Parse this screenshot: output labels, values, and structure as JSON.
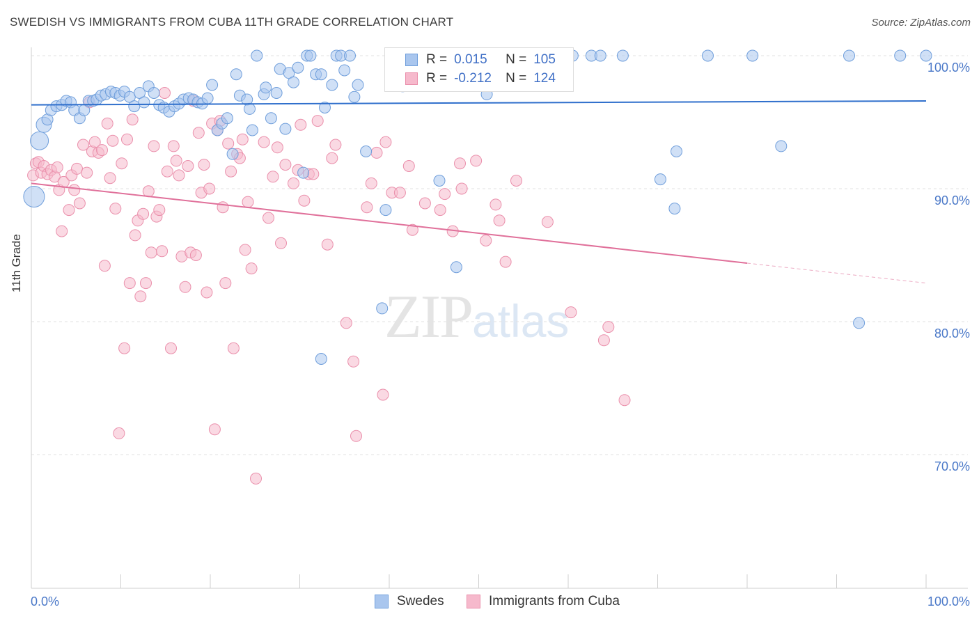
{
  "header": {
    "title": "SWEDISH VS IMMIGRANTS FROM CUBA 11TH GRADE CORRELATION CHART",
    "source": "Source: ZipAtlas.com"
  },
  "watermark": {
    "zip": "ZIP",
    "atlas": "atlas"
  },
  "legend_top": {
    "rows": [
      {
        "r_label": "R =",
        "r_value": "0.015",
        "n_label": "N =",
        "n_value": "105"
      },
      {
        "r_label": "R =",
        "r_value": "-0.212",
        "n_label": "N =",
        "n_value": "124"
      }
    ]
  },
  "legend_bottom": {
    "items": [
      "Swedes",
      "Immigrants from Cuba"
    ]
  },
  "colors": {
    "swedes_fill": "#a9c6ee",
    "swedes_stroke": "#6f9edb",
    "swedes_line": "#2f6fcc",
    "cuba_fill": "#f6b9cc",
    "cuba_stroke": "#ea8fab",
    "cuba_line": "#e0709a",
    "grid": "#e2e2e2",
    "axis_text": "#4a78c8"
  },
  "chart_data": {
    "type": "scatter",
    "title": "SWEDISH VS IMMIGRANTS FROM CUBA 11TH GRADE CORRELATION CHART",
    "xlabel": "",
    "ylabel": "11th Grade",
    "xlim": [
      0,
      100
    ],
    "ylim": [
      60.4,
      101.5
    ],
    "x_tick_labels": [
      {
        "value": 0,
        "label": "0.0%"
      },
      {
        "value": 100,
        "label": "100.0%"
      }
    ],
    "y_tick_labels": [
      {
        "value": 100,
        "label": "100.0%"
      },
      {
        "value": 90,
        "label": "90.0%"
      },
      {
        "value": 80,
        "label": "80.0%"
      },
      {
        "value": 70,
        "label": "70.0%"
      }
    ],
    "grid": true,
    "legend_position": "top-center",
    "series": [
      {
        "name": "Swedes",
        "r": 0.015,
        "n": 105,
        "trend": {
          "x": [
            0,
            100
          ],
          "y": [
            96.3,
            96.6
          ],
          "dashed_from_x": null
        },
        "points": [
          [
            0.3,
            89.4
          ],
          [
            0.9,
            93.6
          ],
          [
            1.4,
            94.8
          ],
          [
            1.8,
            95.2
          ],
          [
            2.2,
            95.9
          ],
          [
            2.8,
            96.2
          ],
          [
            3.4,
            96.3
          ],
          [
            3.9,
            96.6
          ],
          [
            4.4,
            96.5
          ],
          [
            4.8,
            95.9
          ],
          [
            5.4,
            95.3
          ],
          [
            5.9,
            95.9
          ],
          [
            6.4,
            96.6
          ],
          [
            6.9,
            96.6
          ],
          [
            7.3,
            96.7
          ],
          [
            7.8,
            97.0
          ],
          [
            8.3,
            97.1
          ],
          [
            8.9,
            97.3
          ],
          [
            9.4,
            97.2
          ],
          [
            9.9,
            97.0
          ],
          [
            10.4,
            97.3
          ],
          [
            11.0,
            96.9
          ],
          [
            11.5,
            96.2
          ],
          [
            12.1,
            97.2
          ],
          [
            12.6,
            96.5
          ],
          [
            13.1,
            97.7
          ],
          [
            13.7,
            97.2
          ],
          [
            14.3,
            96.3
          ],
          [
            14.8,
            96.1
          ],
          [
            15.4,
            95.8
          ],
          [
            16.0,
            96.2
          ],
          [
            16.5,
            96.4
          ],
          [
            17.0,
            96.7
          ],
          [
            17.6,
            96.8
          ],
          [
            18.1,
            96.7
          ],
          [
            18.6,
            96.5
          ],
          [
            19.1,
            96.4
          ],
          [
            19.7,
            96.8
          ],
          [
            20.2,
            97.8
          ],
          [
            20.8,
            94.4
          ],
          [
            21.3,
            94.9
          ],
          [
            21.9,
            95.3
          ],
          [
            22.5,
            92.6
          ],
          [
            22.9,
            98.6
          ],
          [
            23.3,
            97.0
          ],
          [
            24.1,
            96.7
          ],
          [
            24.4,
            96.0
          ],
          [
            24.7,
            94.4
          ],
          [
            25.2,
            100.0
          ],
          [
            26.0,
            97.1
          ],
          [
            26.2,
            97.6
          ],
          [
            26.8,
            95.3
          ],
          [
            27.4,
            97.2
          ],
          [
            27.8,
            99.0
          ],
          [
            28.4,
            94.5
          ],
          [
            28.8,
            98.7
          ],
          [
            29.3,
            98.0
          ],
          [
            29.8,
            99.1
          ],
          [
            30.4,
            91.2
          ],
          [
            30.8,
            100.0
          ],
          [
            31.2,
            100.0
          ],
          [
            31.8,
            98.6
          ],
          [
            32.4,
            98.6
          ],
          [
            32.8,
            96.1
          ],
          [
            33.6,
            97.8
          ],
          [
            34.1,
            100.0
          ],
          [
            34.6,
            100.0
          ],
          [
            35.0,
            98.9
          ],
          [
            35.6,
            100.0
          ],
          [
            36.1,
            96.9
          ],
          [
            36.5,
            97.8
          ],
          [
            37.4,
            92.8
          ],
          [
            39.2,
            81.0
          ],
          [
            39.6,
            88.4
          ],
          [
            40.6,
            98.4
          ],
          [
            40.9,
            100.0
          ],
          [
            41.5,
            97.7
          ],
          [
            43.0,
            100.0
          ],
          [
            44.8,
            100.0
          ],
          [
            45.6,
            90.6
          ],
          [
            47.5,
            84.1
          ],
          [
            50.1,
            100.0
          ],
          [
            50.5,
            100.0
          ],
          [
            50.9,
            97.1
          ],
          [
            52.7,
            100.0
          ],
          [
            54.2,
            100.0
          ],
          [
            55.8,
            100.0
          ],
          [
            56.4,
            100.0
          ],
          [
            57.2,
            100.0
          ],
          [
            59.4,
            100.0
          ],
          [
            60.5,
            100.0
          ],
          [
            62.6,
            100.0
          ],
          [
            63.6,
            100.0
          ],
          [
            66.1,
            100.0
          ],
          [
            70.3,
            90.7
          ],
          [
            71.9,
            88.5
          ],
          [
            72.1,
            92.8
          ],
          [
            75.6,
            100.0
          ],
          [
            80.6,
            100.0
          ],
          [
            83.8,
            93.2
          ],
          [
            91.4,
            100.0
          ],
          [
            92.5,
            79.9
          ],
          [
            97.1,
            100.0
          ],
          [
            100.0,
            100.0
          ],
          [
            32.4,
            77.2
          ]
        ]
      },
      {
        "name": "Immigrants from Cuba",
        "r": -0.212,
        "n": 124,
        "trend": {
          "x": [
            0,
            100
          ],
          "y": [
            90.4,
            82.9
          ],
          "dashed_from_x": 80
        },
        "points": [
          [
            0.2,
            91.0
          ],
          [
            0.5,
            91.9
          ],
          [
            0.8,
            92.0
          ],
          [
            1.1,
            91.2
          ],
          [
            1.4,
            91.7
          ],
          [
            1.8,
            91.1
          ],
          [
            2.2,
            91.4
          ],
          [
            2.6,
            90.9
          ],
          [
            2.9,
            91.6
          ],
          [
            3.1,
            89.9
          ],
          [
            3.4,
            86.8
          ],
          [
            3.6,
            90.5
          ],
          [
            4.2,
            88.4
          ],
          [
            4.5,
            91.0
          ],
          [
            4.8,
            89.9
          ],
          [
            5.1,
            91.5
          ],
          [
            5.4,
            88.9
          ],
          [
            5.8,
            93.3
          ],
          [
            6.2,
            91.2
          ],
          [
            6.5,
            96.5
          ],
          [
            6.8,
            92.8
          ],
          [
            7.1,
            93.5
          ],
          [
            7.5,
            92.7
          ],
          [
            7.9,
            92.9
          ],
          [
            8.2,
            84.2
          ],
          [
            8.5,
            94.9
          ],
          [
            8.8,
            90.8
          ],
          [
            9.1,
            93.6
          ],
          [
            9.4,
            88.5
          ],
          [
            9.8,
            71.6
          ],
          [
            10.1,
            91.9
          ],
          [
            10.4,
            78.0
          ],
          [
            10.7,
            93.7
          ],
          [
            11.0,
            82.9
          ],
          [
            11.3,
            95.2
          ],
          [
            11.6,
            86.5
          ],
          [
            11.9,
            87.6
          ],
          [
            12.2,
            81.9
          ],
          [
            12.5,
            88.1
          ],
          [
            12.8,
            82.9
          ],
          [
            13.1,
            89.8
          ],
          [
            13.4,
            85.2
          ],
          [
            13.7,
            93.2
          ],
          [
            14.0,
            87.9
          ],
          [
            14.3,
            88.4
          ],
          [
            14.6,
            85.3
          ],
          [
            14.9,
            97.2
          ],
          [
            15.2,
            91.3
          ],
          [
            15.6,
            78.0
          ],
          [
            15.9,
            93.2
          ],
          [
            16.2,
            92.1
          ],
          [
            16.5,
            91.0
          ],
          [
            16.8,
            84.9
          ],
          [
            17.2,
            82.6
          ],
          [
            17.5,
            91.7
          ],
          [
            17.8,
            85.2
          ],
          [
            18.1,
            96.6
          ],
          [
            18.4,
            85.0
          ],
          [
            18.7,
            94.2
          ],
          [
            19.0,
            89.7
          ],
          [
            19.3,
            91.8
          ],
          [
            19.6,
            82.2
          ],
          [
            19.9,
            90.0
          ],
          [
            20.2,
            94.9
          ],
          [
            20.5,
            71.9
          ],
          [
            20.8,
            94.4
          ],
          [
            21.1,
            95.1
          ],
          [
            21.4,
            88.6
          ],
          [
            21.7,
            82.9
          ],
          [
            22.0,
            93.4
          ],
          [
            22.3,
            91.3
          ],
          [
            22.6,
            78.0
          ],
          [
            23.0,
            92.6
          ],
          [
            23.3,
            92.3
          ],
          [
            23.6,
            93.7
          ],
          [
            23.9,
            85.4
          ],
          [
            24.2,
            89.0
          ],
          [
            24.6,
            84.0
          ],
          [
            25.1,
            68.2
          ],
          [
            26.0,
            93.5
          ],
          [
            26.5,
            87.8
          ],
          [
            27.0,
            90.9
          ],
          [
            27.5,
            93.1
          ],
          [
            27.9,
            85.9
          ],
          [
            28.4,
            91.8
          ],
          [
            29.3,
            90.4
          ],
          [
            29.8,
            91.4
          ],
          [
            30.1,
            94.8
          ],
          [
            30.5,
            89.1
          ],
          [
            31.0,
            91.1
          ],
          [
            31.5,
            91.1
          ],
          [
            32.0,
            95.1
          ],
          [
            33.1,
            85.8
          ],
          [
            33.6,
            92.3
          ],
          [
            34.0,
            93.3
          ],
          [
            35.2,
            79.9
          ],
          [
            36.0,
            77.0
          ],
          [
            36.3,
            71.4
          ],
          [
            37.5,
            88.6
          ],
          [
            38.0,
            90.4
          ],
          [
            38.6,
            92.7
          ],
          [
            39.3,
            74.5
          ],
          [
            39.6,
            93.5
          ],
          [
            40.3,
            89.7
          ],
          [
            41.2,
            89.7
          ],
          [
            42.2,
            91.7
          ],
          [
            42.6,
            86.9
          ],
          [
            44.0,
            88.9
          ],
          [
            45.7,
            88.4
          ],
          [
            46.2,
            89.6
          ],
          [
            47.1,
            86.8
          ],
          [
            47.9,
            91.9
          ],
          [
            48.1,
            90.0
          ],
          [
            49.7,
            92.1
          ],
          [
            50.8,
            86.1
          ],
          [
            51.9,
            88.8
          ],
          [
            52.3,
            87.6
          ],
          [
            53.0,
            84.5
          ],
          [
            54.2,
            90.6
          ],
          [
            57.7,
            87.5
          ],
          [
            60.3,
            80.7
          ],
          [
            64.0,
            78.6
          ],
          [
            64.5,
            79.6
          ],
          [
            66.3,
            74.1
          ]
        ]
      }
    ]
  }
}
